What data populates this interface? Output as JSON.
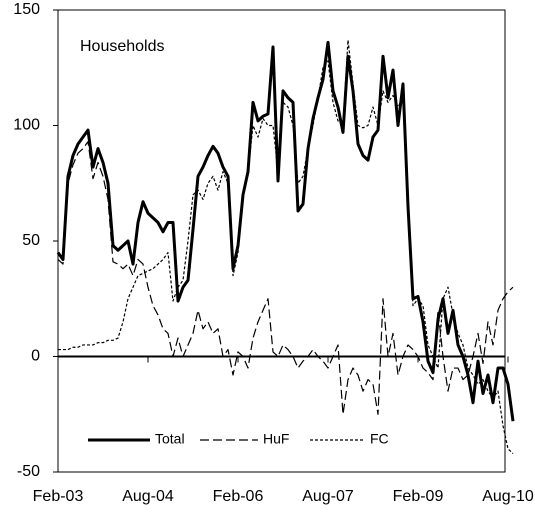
{
  "chart_data": {
    "type": "line",
    "title": "Households",
    "categories": [
      "Feb-03",
      null,
      null,
      null,
      null,
      null,
      null,
      null,
      null,
      null,
      null,
      null,
      null,
      null,
      null,
      null,
      null,
      null,
      "Aug-04",
      null,
      null,
      null,
      null,
      null,
      null,
      null,
      null,
      null,
      null,
      null,
      null,
      null,
      null,
      null,
      null,
      null,
      "Feb-06",
      null,
      null,
      null,
      null,
      null,
      null,
      null,
      null,
      null,
      null,
      null,
      null,
      null,
      null,
      null,
      null,
      null,
      "Aug-07",
      null,
      null,
      null,
      null,
      null,
      null,
      null,
      null,
      null,
      null,
      null,
      null,
      null,
      null,
      null,
      null,
      null,
      "Feb-09",
      null,
      null,
      null,
      null,
      null,
      null,
      null,
      null,
      null,
      null,
      null,
      null,
      null,
      null,
      null,
      null,
      null,
      "Aug-10",
      null
    ],
    "series": [
      {
        "name": "Total",
        "color": "#000000",
        "style": "solid",
        "values": [
          45,
          42,
          78,
          87,
          92,
          95,
          98,
          82,
          90,
          84,
          75,
          48,
          46,
          48,
          50,
          40,
          58,
          67,
          62,
          60,
          58,
          54,
          58,
          58,
          24,
          30,
          33,
          55,
          78,
          82,
          87,
          91,
          88,
          82,
          78,
          38,
          48,
          70,
          80,
          110,
          102,
          104,
          105,
          134,
          76,
          115,
          112,
          110,
          63,
          66,
          90,
          103,
          112,
          120,
          136,
          115,
          108,
          97,
          130,
          115,
          92,
          87,
          85,
          95,
          98,
          130,
          112,
          124,
          100,
          118,
          65,
          25,
          26,
          15,
          -2,
          -7,
          16,
          25,
          10,
          20,
          5,
          0,
          -8,
          -20,
          -2,
          -16,
          -8,
          -20,
          -5,
          -5,
          -12,
          -28
        ]
      },
      {
        "name": "HuF",
        "color": "#000000",
        "style": "dashed",
        "values": [
          42,
          40,
          75,
          83,
          88,
          90,
          93,
          77,
          84,
          78,
          68,
          41,
          40,
          38,
          40,
          35,
          42,
          40,
          30,
          22,
          18,
          12,
          10,
          0,
          8,
          0,
          5,
          10,
          20,
          12,
          15,
          10,
          12,
          0,
          3,
          -8,
          2,
          0,
          -5,
          8,
          15,
          20,
          25,
          2,
          0,
          5,
          3,
          0,
          -5,
          -2,
          0,
          3,
          0,
          -2,
          -5,
          0,
          5,
          -25,
          -10,
          -5,
          -8,
          -15,
          -10,
          -12,
          -25,
          25,
          0,
          10,
          -8,
          0,
          5,
          3,
          0,
          -5,
          -7,
          -10,
          20,
          0,
          -15,
          -5,
          -5,
          -10,
          -8,
          0,
          10,
          -3,
          15,
          5,
          20,
          25,
          28,
          30
        ]
      },
      {
        "name": "FC",
        "color": "#000000",
        "style": "dotted",
        "values": [
          3,
          3,
          3,
          4,
          4,
          5,
          5,
          5,
          6,
          6,
          7,
          7,
          8,
          15,
          25,
          30,
          35,
          36,
          37,
          38,
          40,
          42,
          45,
          24,
          30,
          33,
          50,
          70,
          72,
          68,
          75,
          78,
          72,
          80,
          75,
          35,
          45,
          70,
          80,
          100,
          95,
          103,
          100,
          100,
          80,
          110,
          108,
          100,
          75,
          78,
          90,
          100,
          112,
          125,
          128,
          110,
          102,
          100,
          137,
          118,
          100,
          99,
          100,
          108,
          100,
          115,
          110,
          113,
          108,
          112,
          60,
          22,
          25,
          22,
          5,
          0,
          -5,
          25,
          30,
          18,
          10,
          5,
          -5,
          -8,
          -12,
          -10,
          -15,
          -18,
          -15,
          -30,
          -40,
          -42
        ]
      }
    ],
    "ylim": [
      -50,
      150
    ],
    "yticks": [
      -50,
      0,
      50,
      100,
      150
    ]
  }
}
